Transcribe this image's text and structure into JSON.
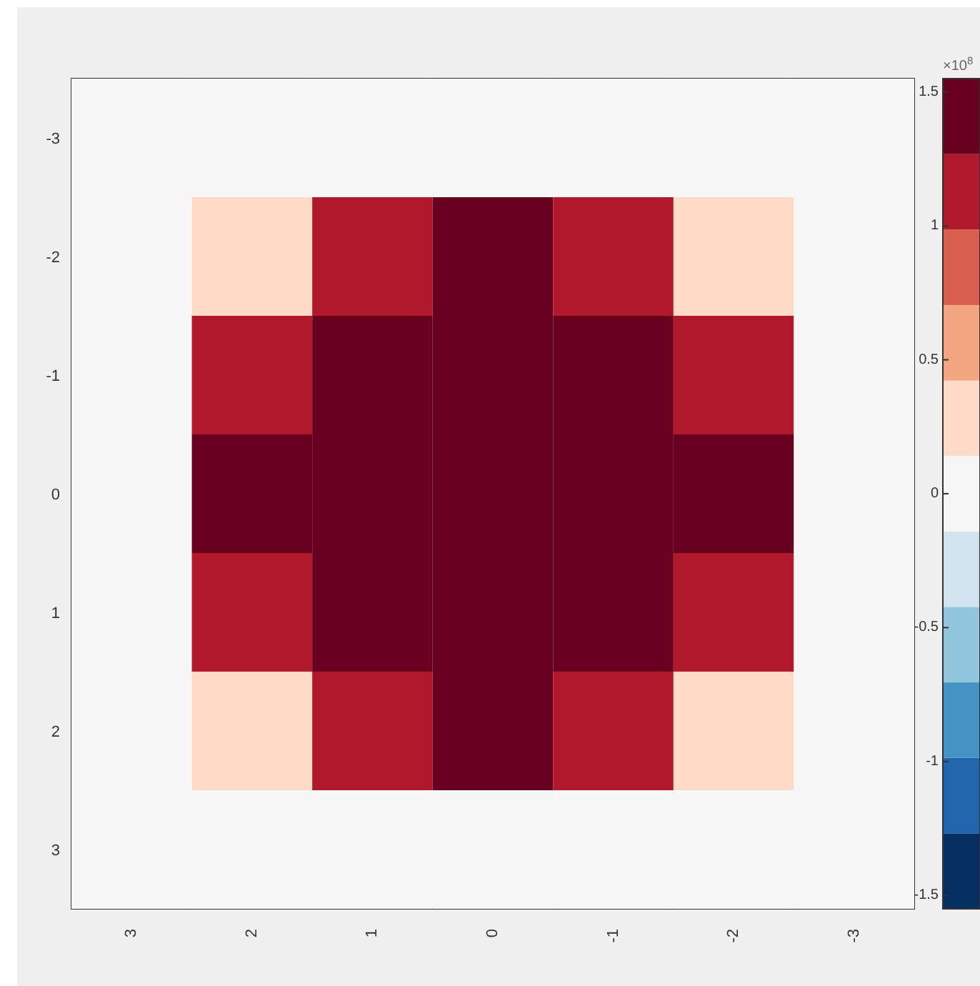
{
  "chart_data": {
    "type": "heatmap",
    "categories": [
      "3",
      "2",
      "1",
      "0",
      "-1",
      "-2",
      "-3"
    ],
    "y_categories": [
      "-3",
      "-2",
      "-1",
      "0",
      "1",
      "2",
      "3"
    ],
    "cells": [
      [
        0,
        0,
        0,
        0,
        0,
        0,
        0
      ],
      [
        0,
        0.3,
        1.1,
        1.5,
        1.1,
        0.3,
        0
      ],
      [
        0,
        1.1,
        1.5,
        1.5,
        1.5,
        1.1,
        0
      ],
      [
        0,
        1.5,
        1.5,
        1.5,
        1.5,
        1.5,
        0
      ],
      [
        0,
        1.1,
        1.5,
        1.5,
        1.5,
        1.1,
        0
      ],
      [
        0,
        0.3,
        1.1,
        1.5,
        1.1,
        0.3,
        0
      ],
      [
        0,
        0,
        0,
        0,
        0,
        0,
        0
      ]
    ],
    "clim": [
      -1.55,
      1.55
    ],
    "cticks": [
      -1.5,
      -1,
      -0.5,
      0,
      0.5,
      1,
      1.5
    ],
    "clabel": "×10$^{8}$"
  }
}
